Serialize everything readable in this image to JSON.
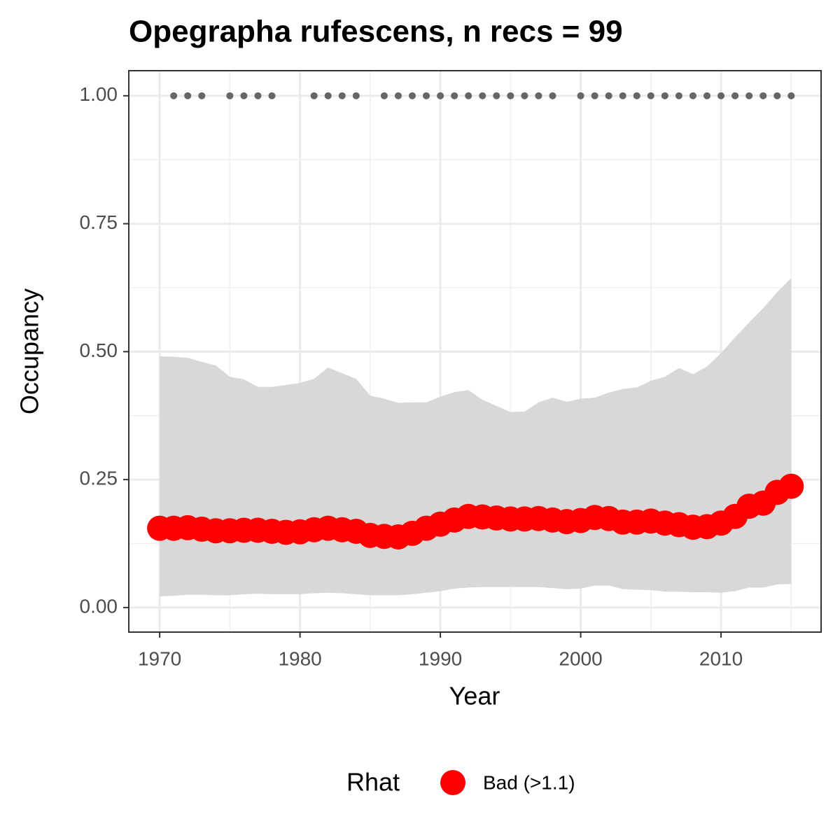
{
  "chart_data": {
    "type": "line",
    "title": "Opegrapha rufescens, n recs = 99",
    "x_label": "Year",
    "y_label": "Occupancy",
    "legend_title": "Rhat",
    "x": [
      1970,
      1971,
      1972,
      1973,
      1974,
      1975,
      1976,
      1977,
      1978,
      1979,
      1980,
      1981,
      1982,
      1983,
      1984,
      1985,
      1986,
      1987,
      1988,
      1989,
      1990,
      1991,
      1992,
      1993,
      1994,
      1995,
      1996,
      1997,
      1998,
      1999,
      2000,
      2001,
      2002,
      2003,
      2004,
      2005,
      2006,
      2007,
      2008,
      2009,
      2010,
      2011,
      2012,
      2013,
      2014,
      2015
    ],
    "series": [
      {
        "name": "Bad (>1.1)",
        "color": "#ff0000",
        "values": [
          0.155,
          0.155,
          0.156,
          0.153,
          0.15,
          0.15,
          0.151,
          0.151,
          0.149,
          0.147,
          0.148,
          0.152,
          0.155,
          0.152,
          0.149,
          0.141,
          0.139,
          0.138,
          0.145,
          0.155,
          0.163,
          0.171,
          0.178,
          0.177,
          0.175,
          0.173,
          0.173,
          0.174,
          0.171,
          0.168,
          0.17,
          0.176,
          0.174,
          0.167,
          0.167,
          0.169,
          0.165,
          0.162,
          0.157,
          0.158,
          0.165,
          0.178,
          0.198,
          0.204,
          0.225,
          0.237
        ]
      }
    ],
    "band": {
      "color": "#d6d6d6",
      "upper": [
        0.491,
        0.49,
        0.488,
        0.48,
        0.473,
        0.451,
        0.446,
        0.431,
        0.431,
        0.435,
        0.439,
        0.447,
        0.469,
        0.458,
        0.447,
        0.414,
        0.408,
        0.4,
        0.401,
        0.401,
        0.412,
        0.421,
        0.425,
        0.406,
        0.394,
        0.382,
        0.383,
        0.401,
        0.41,
        0.402,
        0.408,
        0.41,
        0.42,
        0.427,
        0.43,
        0.443,
        0.451,
        0.468,
        0.456,
        0.471,
        0.497,
        0.528,
        0.557,
        0.585,
        0.616,
        0.644
      ],
      "lower": [
        0.022,
        0.023,
        0.025,
        0.025,
        0.024,
        0.024,
        0.026,
        0.027,
        0.026,
        0.026,
        0.026,
        0.028,
        0.029,
        0.028,
        0.026,
        0.024,
        0.024,
        0.024,
        0.026,
        0.029,
        0.032,
        0.037,
        0.039,
        0.04,
        0.04,
        0.04,
        0.04,
        0.04,
        0.038,
        0.036,
        0.037,
        0.043,
        0.043,
        0.036,
        0.035,
        0.034,
        0.031,
        0.031,
        0.03,
        0.03,
        0.029,
        0.032,
        0.039,
        0.039,
        0.045,
        0.046
      ]
    },
    "records": {
      "color": "#666666",
      "x": [
        1971,
        1972,
        1973,
        1975,
        1976,
        1977,
        1978,
        1981,
        1982,
        1983,
        1984,
        1986,
        1987,
        1988,
        1989,
        1990,
        1991,
        1992,
        1993,
        1994,
        1995,
        1996,
        1997,
        1998,
        2000,
        2001,
        2002,
        2003,
        2004,
        2005,
        2006,
        2007,
        2008,
        2009,
        2010,
        2011,
        2012,
        2013,
        2014,
        2015
      ],
      "values": [
        1,
        1,
        1,
        1,
        1,
        1,
        1,
        1,
        1,
        1,
        1,
        1,
        1,
        1,
        1,
        1,
        1,
        1,
        1,
        1,
        1,
        1,
        1,
        1,
        1,
        1,
        1,
        1,
        1,
        1,
        1,
        1,
        1,
        1,
        1,
        1,
        1,
        1,
        1,
        1
      ]
    },
    "xlim": [
      1967.8,
      2017.13
    ],
    "ylim": [
      -0.048,
      1.049
    ],
    "xticks": [
      1970,
      1980,
      1990,
      2000,
      2010
    ],
    "yticks": [
      {
        "value": 0,
        "label": "0.00"
      },
      {
        "value": 0.25,
        "label": "0.25"
      },
      {
        "value": 0.5,
        "label": "0.50"
      },
      {
        "value": 0.75,
        "label": "0.75"
      },
      {
        "value": 1,
        "label": "1.00"
      }
    ],
    "minor_xticks": [
      1975,
      1985,
      1995,
      2005,
      2015
    ],
    "minor_yticks": [
      0.125,
      0.375,
      0.625,
      0.875
    ],
    "grid": true
  }
}
